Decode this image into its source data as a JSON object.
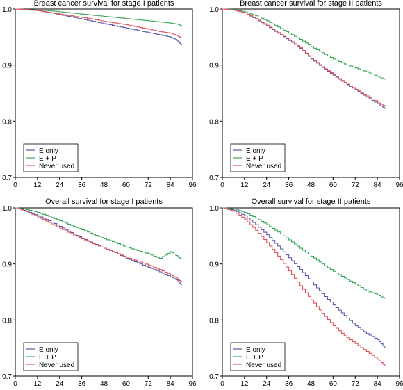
{
  "chart_data": [
    {
      "type": "line",
      "title": "Breast cancer survival for stage I patients",
      "xlabel": "",
      "ylabel": "",
      "xlim": [
        0,
        96
      ],
      "ylim": [
        0.7,
        1.0
      ],
      "xticks": [
        "0",
        "12",
        "24",
        "36",
        "48",
        "60",
        "72",
        "84",
        "96"
      ],
      "yticks": [
        "0.7",
        "0.8",
        "0.9",
        "1.0"
      ],
      "legend_position": "bottom-left",
      "series": [
        {
          "name": "E only",
          "color": "#5b5baa",
          "x": [
            0,
            6,
            12,
            18,
            24,
            30,
            36,
            42,
            48,
            54,
            60,
            66,
            72,
            78,
            84,
            87,
            89,
            90
          ],
          "y": [
            1.0,
            0.999,
            0.997,
            0.994,
            0.99,
            0.986,
            0.982,
            0.978,
            0.974,
            0.97,
            0.966,
            0.962,
            0.958,
            0.954,
            0.95,
            0.946,
            0.94,
            0.935
          ]
        },
        {
          "name": "E + P",
          "color": "#3aa65a",
          "x": [
            0,
            6,
            12,
            18,
            24,
            30,
            36,
            42,
            48,
            54,
            60,
            66,
            72,
            78,
            84,
            88,
            90
          ],
          "y": [
            1.0,
            0.999,
            0.998,
            0.997,
            0.995,
            0.993,
            0.991,
            0.989,
            0.987,
            0.985,
            0.983,
            0.981,
            0.979,
            0.977,
            0.975,
            0.973,
            0.97
          ]
        },
        {
          "name": "Never used",
          "color": "#e0525c",
          "x": [
            0,
            6,
            12,
            18,
            24,
            30,
            36,
            42,
            48,
            54,
            60,
            66,
            72,
            78,
            84,
            88,
            90
          ],
          "y": [
            1.0,
            0.999,
            0.997,
            0.994,
            0.991,
            0.988,
            0.985,
            0.982,
            0.978,
            0.975,
            0.972,
            0.968,
            0.964,
            0.96,
            0.957,
            0.952,
            0.948
          ]
        }
      ]
    },
    {
      "type": "line",
      "title": "Breast cancer survival for stage II patients",
      "xlabel": "",
      "ylabel": "",
      "xlim": [
        0,
        96
      ],
      "ylim": [
        0.7,
        1.0
      ],
      "xticks": [
        "0",
        "12",
        "24",
        "36",
        "48",
        "60",
        "72",
        "84",
        "96"
      ],
      "yticks": [
        "0.7",
        "0.8",
        "0.9",
        "1.0"
      ],
      "legend_position": "bottom-left",
      "series": [
        {
          "name": "E only",
          "color": "#5b5baa",
          "x": [
            0,
            6,
            12,
            18,
            24,
            30,
            36,
            42,
            48,
            54,
            60,
            66,
            72,
            78,
            84,
            88
          ],
          "y": [
            1.0,
            0.998,
            0.993,
            0.982,
            0.97,
            0.957,
            0.944,
            0.93,
            0.911,
            0.896,
            0.882,
            0.868,
            0.856,
            0.843,
            0.831,
            0.822
          ]
        },
        {
          "name": "E + P",
          "color": "#3aa65a",
          "x": [
            0,
            6,
            12,
            18,
            24,
            30,
            36,
            42,
            48,
            54,
            60,
            66,
            72,
            78,
            84,
            88
          ],
          "y": [
            1.0,
            0.999,
            0.995,
            0.988,
            0.979,
            0.968,
            0.957,
            0.946,
            0.933,
            0.922,
            0.911,
            0.902,
            0.895,
            0.888,
            0.88,
            0.874
          ]
        },
        {
          "name": "Never used",
          "color": "#e0525c",
          "x": [
            0,
            6,
            12,
            18,
            24,
            30,
            36,
            42,
            48,
            54,
            60,
            66,
            72,
            78,
            84,
            88
          ],
          "y": [
            1.0,
            0.998,
            0.993,
            0.983,
            0.971,
            0.958,
            0.945,
            0.931,
            0.912,
            0.897,
            0.883,
            0.869,
            0.857,
            0.845,
            0.834,
            0.826
          ]
        }
      ]
    },
    {
      "type": "line",
      "title": "Overall survival for stage I patients",
      "xlabel": "",
      "ylabel": "",
      "xlim": [
        0,
        96
      ],
      "ylim": [
        0.7,
        1.0
      ],
      "xticks": [
        "0",
        "12",
        "24",
        "36",
        "48",
        "60",
        "72",
        "84",
        "96"
      ],
      "yticks": [
        "0.7",
        "0.8",
        "0.9",
        "1.0"
      ],
      "legend_position": "bottom-left",
      "series": [
        {
          "name": "E only",
          "color": "#5b5baa",
          "x": [
            0,
            6,
            12,
            18,
            24,
            30,
            36,
            42,
            48,
            54,
            60,
            66,
            72,
            78,
            84,
            88,
            90
          ],
          "y": [
            1.0,
            0.994,
            0.986,
            0.977,
            0.967,
            0.956,
            0.946,
            0.937,
            0.928,
            0.92,
            0.91,
            0.902,
            0.894,
            0.886,
            0.877,
            0.87,
            0.862
          ]
        },
        {
          "name": "E + P",
          "color": "#3aa65a",
          "x": [
            0,
            6,
            12,
            18,
            24,
            30,
            36,
            42,
            48,
            54,
            60,
            66,
            72,
            78,
            84,
            88,
            90
          ],
          "y": [
            1.0,
            0.997,
            0.992,
            0.985,
            0.977,
            0.969,
            0.961,
            0.953,
            0.945,
            0.938,
            0.93,
            0.924,
            0.918,
            0.91,
            0.922,
            0.913,
            0.908
          ]
        },
        {
          "name": "Never used",
          "color": "#e0525c",
          "x": [
            0,
            6,
            12,
            18,
            24,
            30,
            36,
            42,
            48,
            54,
            60,
            66,
            72,
            78,
            84,
            88,
            90
          ],
          "y": [
            1.0,
            0.993,
            0.984,
            0.974,
            0.964,
            0.954,
            0.945,
            0.936,
            0.928,
            0.92,
            0.912,
            0.905,
            0.898,
            0.89,
            0.881,
            0.873,
            0.868
          ]
        }
      ]
    },
    {
      "type": "line",
      "title": "Overall survival for stage II patients",
      "xlabel": "",
      "ylabel": "",
      "xlim": [
        0,
        96
      ],
      "ylim": [
        0.7,
        1.0
      ],
      "xticks": [
        "0",
        "12",
        "24",
        "36",
        "48",
        "60",
        "72",
        "84",
        "96"
      ],
      "yticks": [
        "0.7",
        "0.8",
        "0.9",
        "1.0"
      ],
      "legend_position": "bottom-left",
      "series": [
        {
          "name": "E only",
          "color": "#5b5baa",
          "x": [
            0,
            6,
            12,
            18,
            24,
            30,
            36,
            42,
            48,
            54,
            60,
            66,
            72,
            78,
            84,
            88
          ],
          "y": [
            1.0,
            0.996,
            0.986,
            0.97,
            0.952,
            0.932,
            0.911,
            0.89,
            0.868,
            0.847,
            0.827,
            0.808,
            0.79,
            0.776,
            0.765,
            0.75
          ]
        },
        {
          "name": "E + P",
          "color": "#3aa65a",
          "x": [
            0,
            6,
            12,
            18,
            24,
            30,
            36,
            42,
            48,
            54,
            60,
            66,
            72,
            78,
            84,
            88
          ],
          "y": [
            1.0,
            0.998,
            0.992,
            0.982,
            0.97,
            0.957,
            0.943,
            0.928,
            0.914,
            0.9,
            0.887,
            0.875,
            0.864,
            0.852,
            0.845,
            0.838
          ]
        },
        {
          "name": "Never used",
          "color": "#e0525c",
          "x": [
            0,
            6,
            12,
            18,
            24,
            30,
            36,
            42,
            48,
            54,
            60,
            66,
            72,
            78,
            84,
            88
          ],
          "y": [
            1.0,
            0.994,
            0.98,
            0.96,
            0.938,
            0.914,
            0.888,
            0.861,
            0.836,
            0.812,
            0.79,
            0.772,
            0.758,
            0.744,
            0.73,
            0.718
          ]
        }
      ]
    }
  ]
}
